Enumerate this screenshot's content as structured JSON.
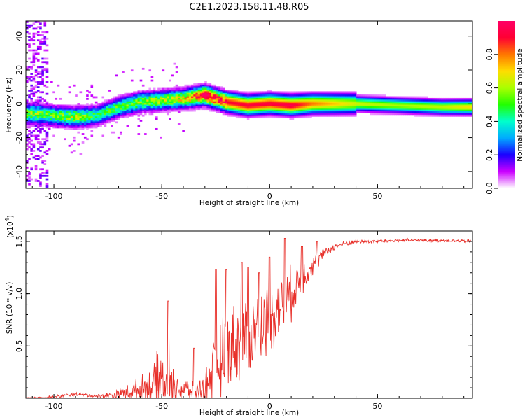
{
  "title": "C2E1.2023.158.11.48.R05",
  "chart_data": [
    {
      "type": "heatmap",
      "xlabel": "Height of straight line (km)",
      "ylabel": "Frequency (Hz)",
      "xlim": [
        -113,
        94
      ],
      "ylim": [
        -50,
        49
      ],
      "xticks": [
        -100,
        -50,
        0,
        50
      ],
      "yticks": [
        40,
        20,
        0,
        -20,
        -40
      ],
      "colorbar": {
        "label": "Normalized spectral amplitude",
        "range": [
          0.0,
          1.0
        ],
        "ticks": [
          0.0,
          0.2,
          0.4,
          0.6,
          0.8
        ],
        "stops": [
          "#ffffff",
          "#cc00ff",
          "#1a00ff",
          "#00aaff",
          "#00ffcc",
          "#22ff00",
          "#aaff00",
          "#ffdd00",
          "#ff7700",
          "#ff0033",
          "#ff0066"
        ]
      },
      "ridge": {
        "x": [
          -108,
          -100,
          -90,
          -80,
          -70,
          -60,
          -50,
          -40,
          -30,
          -20,
          -10,
          0,
          10,
          20,
          40,
          60,
          80,
          94
        ],
        "freq": [
          -6,
          -7,
          -8,
          -7,
          -2,
          1,
          2,
          3,
          5,
          1,
          -1,
          0,
          -1,
          0,
          0,
          -1,
          -2,
          -2
        ],
        "peak_amplitude": [
          0.55,
          0.5,
          0.6,
          0.45,
          0.5,
          0.55,
          0.6,
          0.65,
          0.95,
          0.9,
          0.92,
          0.93,
          0.95,
          0.8,
          0.65,
          0.6,
          0.62,
          0.7
        ]
      }
    },
    {
      "type": "line",
      "xlabel": "Height of straight line (km)",
      "ylabel": "SNR (10 * v/v)",
      "scale_note": "(x10",
      "scale_exponent": "4",
      "xlim": [
        -113,
        94
      ],
      "ylim": [
        0,
        1.6
      ],
      "xticks": [
        -100,
        -50,
        0,
        50
      ],
      "yticks": [
        0.5,
        1.0,
        1.5
      ],
      "color": "#e8302a",
      "series": [
        {
          "name": "SNR",
          "envelope": {
            "x": [
              -113,
              -100,
              -90,
              -80,
              -72,
              -65,
              -60,
              -55,
              -50,
              -48,
              -45,
              -40,
              -35,
              -30,
              -27,
              -22,
              -18,
              -10,
              -5,
              0,
              5,
              10,
              15,
              20,
              25,
              30,
              35,
              40,
              50,
              60,
              70,
              80,
              94
            ],
            "base": [
              0.0,
              0.01,
              0.04,
              0.02,
              0.03,
              0.06,
              0.08,
              0.12,
              0.18,
              0.1,
              0.12,
              0.08,
              0.06,
              0.1,
              0.25,
              0.38,
              0.5,
              0.6,
              0.68,
              0.78,
              0.88,
              1.0,
              1.15,
              1.28,
              1.38,
              1.45,
              1.48,
              1.5,
              1.5,
              1.51,
              1.51,
              1.51,
              1.5
            ],
            "noise": [
              0.01,
              0.02,
              0.02,
              0.02,
              0.05,
              0.1,
              0.15,
              0.2,
              0.4,
              0.25,
              0.2,
              0.15,
              0.1,
              0.15,
              0.35,
              0.45,
              0.45,
              0.45,
              0.42,
              0.4,
              0.38,
              0.3,
              0.2,
              0.12,
              0.06,
              0.04,
              0.03,
              0.025,
              0.02,
              0.02,
              0.02,
              0.02,
              0.02
            ]
          },
          "peaks": [
            [
              -47,
              0.93
            ],
            [
              -35,
              0.48
            ],
            [
              -25,
              1.23
            ],
            [
              -20,
              1.23
            ],
            [
              -13,
              1.3
            ],
            [
              -10,
              1.25
            ],
            [
              -5,
              1.2
            ],
            [
              0,
              1.35
            ],
            [
              7,
              1.53
            ],
            [
              15,
              1.45
            ],
            [
              22,
              1.5
            ]
          ]
        }
      ]
    }
  ]
}
